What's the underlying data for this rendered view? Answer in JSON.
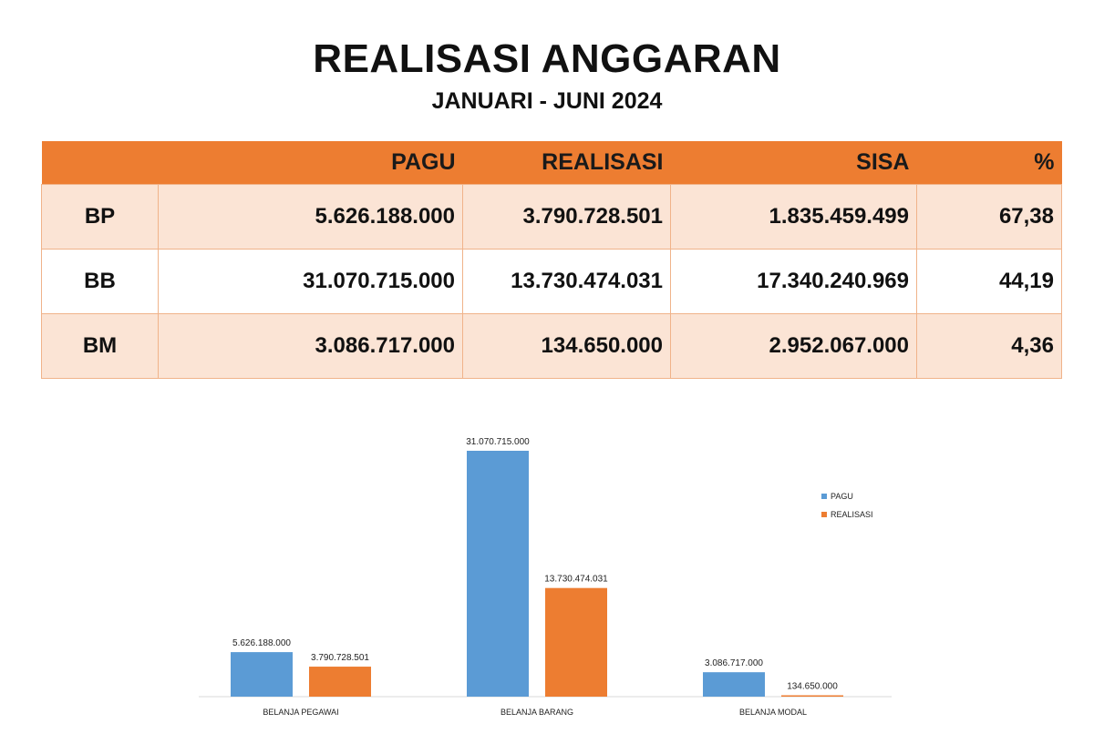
{
  "header": {
    "title": "REALISASI ANGGARAN",
    "subtitle": "JANUARI - JUNI 2024"
  },
  "table": {
    "columns": [
      "",
      "PAGU",
      "REALISASI",
      "SISA",
      "%"
    ],
    "rows": [
      [
        "BP",
        "5.626.188.000",
        "3.790.728.501",
        "1.835.459.499",
        "67,38"
      ],
      [
        "BB",
        "31.070.715.000",
        "13.730.474.031",
        "17.340.240.969",
        "44,19"
      ],
      [
        "BM",
        "3.086.717.000",
        "134.650.000",
        "2.952.067.000",
        "4,36"
      ]
    ]
  },
  "colors": {
    "header_bg": "#ed7d31",
    "row_shade": "#fbe4d5",
    "pagu": "#5b9bd5",
    "realisasi": "#ed7d31"
  },
  "chart_data": {
    "type": "bar",
    "categories": [
      "BELANJA PEGAWAI",
      "BELANJA BARANG",
      "BELANJA MODAL"
    ],
    "series": [
      {
        "name": "PAGU",
        "color": "#5b9bd5",
        "values": [
          5626188000,
          31070715000,
          3086717000
        ],
        "labels": [
          "5.626.188.000",
          "31.070.715.000",
          "3.086.717.000"
        ]
      },
      {
        "name": "REALISASI",
        "color": "#ed7d31",
        "values": [
          3790728501,
          13730474031,
          134650000
        ],
        "labels": [
          "3.790.728.501",
          "13.730.474.031",
          "134.650.000"
        ]
      }
    ],
    "title": "",
    "xlabel": "",
    "ylabel": "",
    "ylim": [
      0,
      31070715000
    ],
    "grid": false,
    "legend": "right"
  }
}
